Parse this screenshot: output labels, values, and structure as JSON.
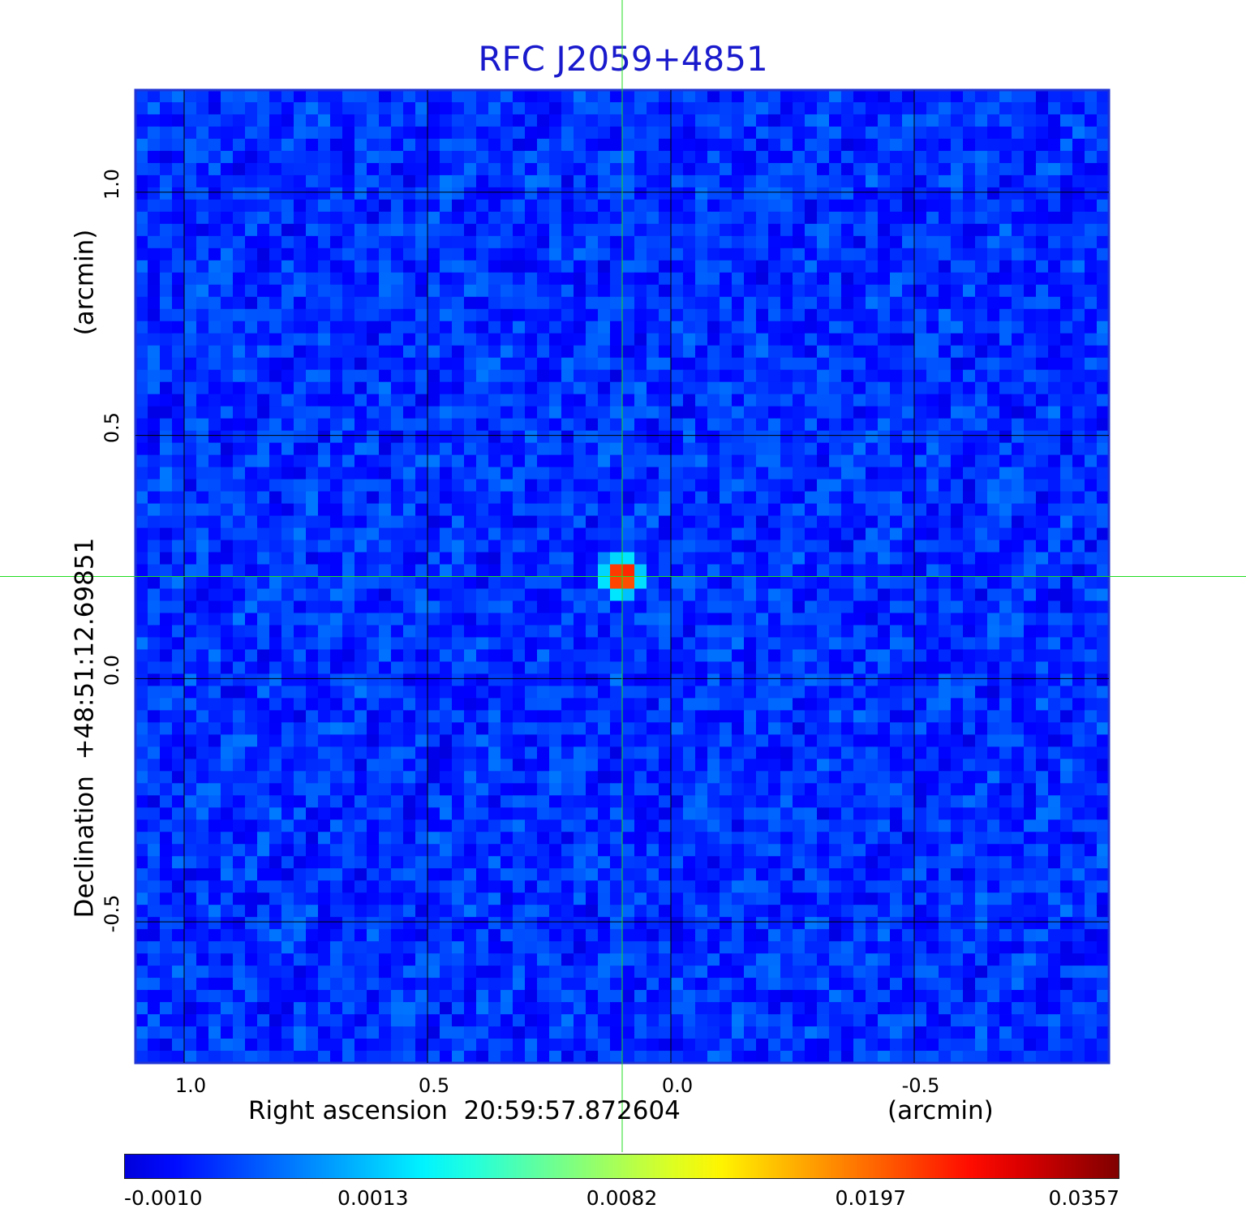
{
  "chart_data": {
    "type": "heatmap",
    "title": "RFC J2059+4851",
    "xlabel": "Right ascension  20:59:57.872604",
    "xunit": "(arcmin)",
    "ylabel": "Declination  +48:51:12.69851",
    "yunit": "(arcmin)",
    "x_ticks": [
      "1.0",
      "0.5",
      "0.0",
      "-0.5"
    ],
    "x_tick_values": [
      1.0,
      0.5,
      0.0,
      -0.5
    ],
    "y_ticks": [
      "1.0",
      "0.5",
      "0.0",
      "-0.5"
    ],
    "y_tick_values": [
      1.0,
      0.5,
      0.0,
      -0.5
    ],
    "xlim": [
      1.1,
      -0.9
    ],
    "ylim": [
      -0.79,
      1.21
    ],
    "x_reversed": true,
    "grid": true,
    "colormap": "jet",
    "colorbar_ticks": [
      "-0.0010",
      "0.0013",
      "0.0082",
      "0.0197",
      "0.0357"
    ],
    "colorbar_values": [
      -0.001,
      0.0013,
      0.0082,
      0.0197,
      0.0357
    ],
    "source": {
      "x": 0.1,
      "y": 0.21,
      "peak": 0.0357
    },
    "crosshair": {
      "x": 0.1,
      "y": 0.21
    },
    "background_level": 0.0005
  },
  "colors": {
    "title": "#1a1acd",
    "frame": "#1f33d6",
    "grid": "#000000",
    "crosshair": "#22dd22"
  }
}
